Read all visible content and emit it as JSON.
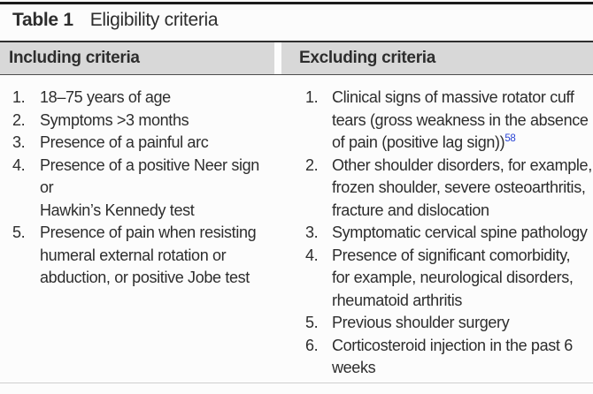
{
  "table": {
    "label": "Table 1",
    "title": "Eligibility criteria",
    "columns": [
      {
        "header": "Including criteria",
        "items": [
          {
            "lines": [
              "18–75 years of age"
            ]
          },
          {
            "lines": [
              "Symptoms >3 months"
            ]
          },
          {
            "lines": [
              "Presence of a painful arc"
            ]
          },
          {
            "lines": [
              "Presence of a positive Neer sign or",
              "Hawkin’s Kennedy test"
            ]
          },
          {
            "lines": [
              "Presence of pain when resisting",
              "humeral external rotation or",
              "abduction, or positive Jobe test"
            ]
          }
        ]
      },
      {
        "header": "Excluding criteria",
        "items": [
          {
            "lines": [
              "Clinical signs of massive rotator cuff",
              "tears (gross weakness in the absence",
              "of pain (positive lag sign))"
            ],
            "ref": "58"
          },
          {
            "lines": [
              "Other shoulder disorders, for example,",
              "frozen shoulder, severe osteoarthritis,",
              "fracture and dislocation"
            ]
          },
          {
            "lines": [
              "Symptomatic cervical spine pathology"
            ]
          },
          {
            "lines": [
              "Presence of significant comorbidity,",
              "for example, neurological disorders,",
              "rheumatoid arthritis"
            ]
          },
          {
            "lines": [
              "Previous shoulder surgery"
            ]
          },
          {
            "lines": [
              "Corticosteroid injection in the past 6",
              "weeks"
            ]
          }
        ]
      }
    ]
  },
  "colors": {
    "header_band": "#d8d8d8",
    "text": "#2d2d2d",
    "reference_link": "#2742d4",
    "top_rule": "#1c1c1c"
  }
}
